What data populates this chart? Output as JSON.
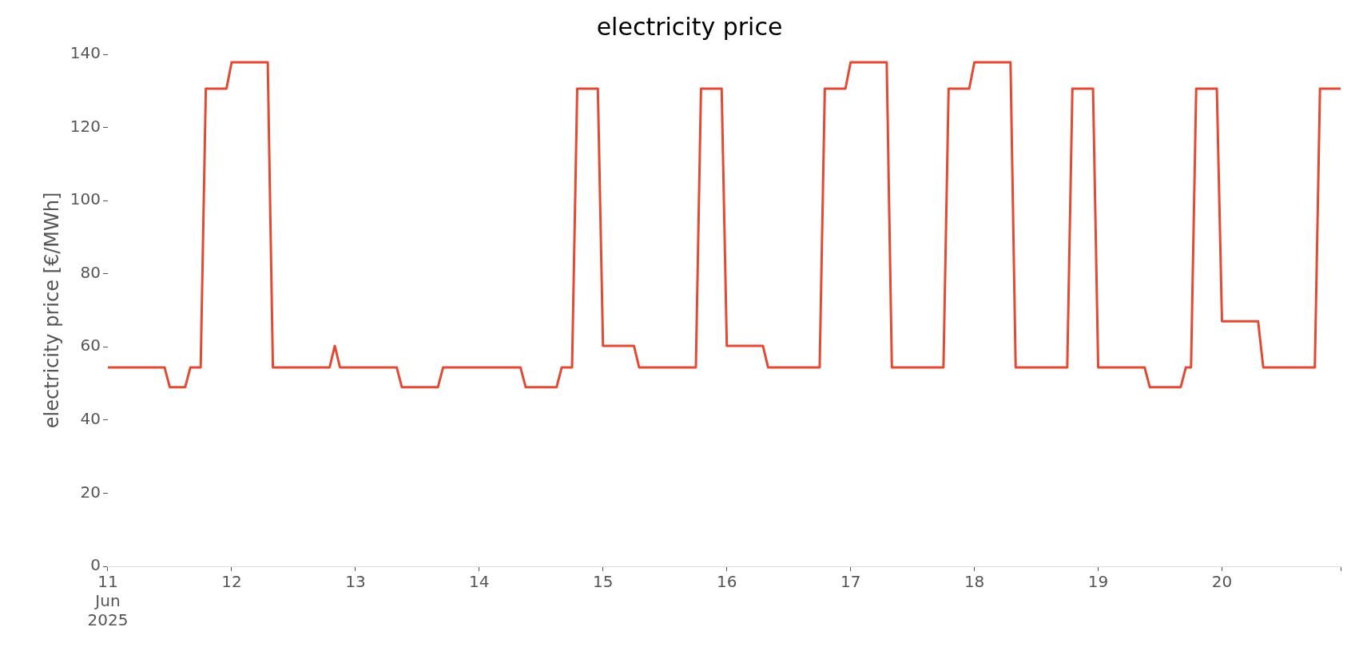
{
  "chart_data": {
    "type": "line",
    "title": "electricity price",
    "ylabel": "electricity price [€/MWh]",
    "x": [
      "2025-06-11T00:00",
      "2025-06-11T11:00",
      "2025-06-11T12:00",
      "2025-06-11T15:00",
      "2025-06-11T16:00",
      "2025-06-11T18:00",
      "2025-06-11T19:00",
      "2025-06-11T23:00",
      "2025-06-12T00:00",
      "2025-06-12T07:00",
      "2025-06-12T08:00",
      "2025-06-12T19:00",
      "2025-06-12T20:00",
      "2025-06-12T21:00",
      "2025-06-13T08:00",
      "2025-06-13T09:00",
      "2025-06-13T16:00",
      "2025-06-13T17:00",
      "2025-06-14T08:00",
      "2025-06-14T09:00",
      "2025-06-14T15:00",
      "2025-06-14T16:00",
      "2025-06-14T18:00",
      "2025-06-14T19:00",
      "2025-06-14T23:00",
      "2025-06-15T00:00",
      "2025-06-15T06:00",
      "2025-06-15T07:00",
      "2025-06-15T18:00",
      "2025-06-15T19:00",
      "2025-06-15T23:00",
      "2025-06-16T00:00",
      "2025-06-16T07:00",
      "2025-06-16T08:00",
      "2025-06-16T18:00",
      "2025-06-16T19:00",
      "2025-06-16T23:00",
      "2025-06-17T00:00",
      "2025-06-17T07:00",
      "2025-06-17T08:00",
      "2025-06-17T18:00",
      "2025-06-17T19:00",
      "2025-06-17T23:00",
      "2025-06-18T00:00",
      "2025-06-18T07:00",
      "2025-06-18T08:00",
      "2025-06-18T18:00",
      "2025-06-18T19:00",
      "2025-06-18T23:00",
      "2025-06-19T00:00",
      "2025-06-19T09:00",
      "2025-06-19T10:00",
      "2025-06-19T16:00",
      "2025-06-19T17:00",
      "2025-06-19T18:00",
      "2025-06-19T19:00",
      "2025-06-19T23:00",
      "2025-06-20T00:00",
      "2025-06-20T07:00",
      "2025-06-20T08:00",
      "2025-06-20T18:00",
      "2025-06-20T19:00",
      "2025-06-20T23:00"
    ],
    "series": [
      {
        "color": "#e24a33",
        "values": [
          54.4,
          54.4,
          49.0,
          49.0,
          54.4,
          54.4,
          130.6,
          130.6,
          137.8,
          137.8,
          54.4,
          54.4,
          60.3,
          54.4,
          54.4,
          49.0,
          49.0,
          54.4,
          54.4,
          49.0,
          49.0,
          54.4,
          54.4,
          130.6,
          130.6,
          60.3,
          60.3,
          54.4,
          54.4,
          130.6,
          130.6,
          60.3,
          60.3,
          54.4,
          54.4,
          130.6,
          130.6,
          137.8,
          137.8,
          54.4,
          54.4,
          130.6,
          130.6,
          137.8,
          137.8,
          54.4,
          54.4,
          130.6,
          130.6,
          54.4,
          54.4,
          49.0,
          49.0,
          54.4,
          54.4,
          130.6,
          130.6,
          67.0,
          67.0,
          54.4,
          54.4,
          130.6,
          130.6
        ]
      }
    ],
    "xticks": [
      {
        "value": "2025-06-11",
        "label": "11\nJun\n2025"
      },
      {
        "value": "2025-06-12",
        "label": "12"
      },
      {
        "value": "2025-06-13",
        "label": "13"
      },
      {
        "value": "2025-06-14",
        "label": "14"
      },
      {
        "value": "2025-06-15",
        "label": "15"
      },
      {
        "value": "2025-06-16",
        "label": "16"
      },
      {
        "value": "2025-06-17",
        "label": "17"
      },
      {
        "value": "2025-06-18",
        "label": "18"
      },
      {
        "value": "2025-06-19",
        "label": "19"
      },
      {
        "value": "2025-06-20",
        "label": "20"
      },
      {
        "value": "2025-06-20T23:00",
        "label": null
      }
    ],
    "xlim": [
      "2025-06-11T00:00",
      "2025-06-20T23:00"
    ],
    "ylim": [
      0,
      140
    ],
    "yticks": [
      0,
      20,
      40,
      60,
      80,
      100,
      120,
      140
    ],
    "grid": false,
    "legend": false,
    "marker": "none",
    "line_style": "solid"
  }
}
